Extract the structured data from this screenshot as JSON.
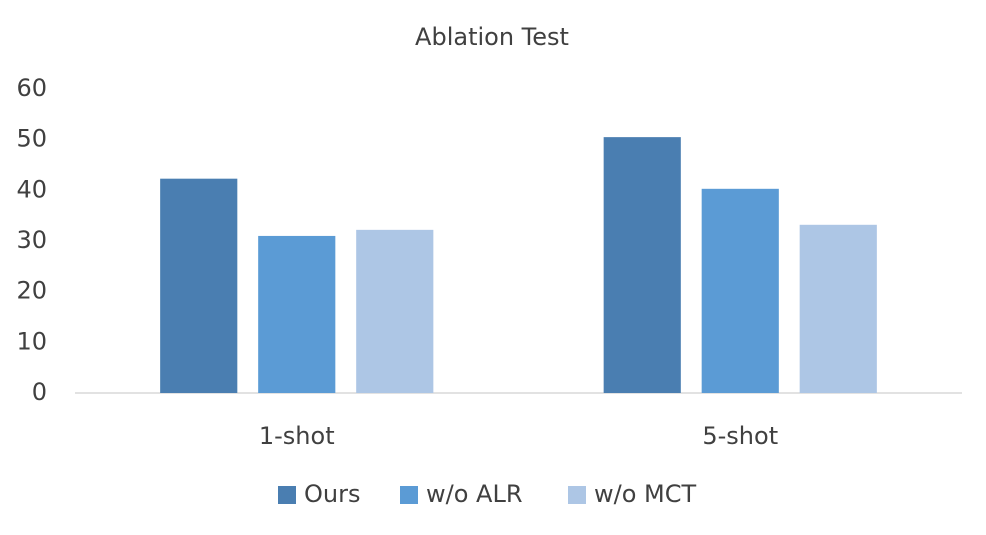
{
  "chart_data": {
    "type": "bar",
    "title": "Ablation Test",
    "categories": [
      "1-shot",
      "5-shot"
    ],
    "series": [
      {
        "name": "Ours",
        "color": "#4a7eb1",
        "values": [
          42.3,
          50.5
        ]
      },
      {
        "name": "w/o ALR",
        "color": "#5b9bd5",
        "values": [
          31.0,
          40.3
        ]
      },
      {
        "name": "w/o MCT",
        "color": "#adc6e5",
        "values": [
          32.2,
          33.2
        ]
      }
    ],
    "ylim": [
      0,
      60
    ],
    "yticks": [
      0,
      10,
      20,
      30,
      40,
      50,
      60
    ],
    "grid": false,
    "legend": "bottom"
  }
}
